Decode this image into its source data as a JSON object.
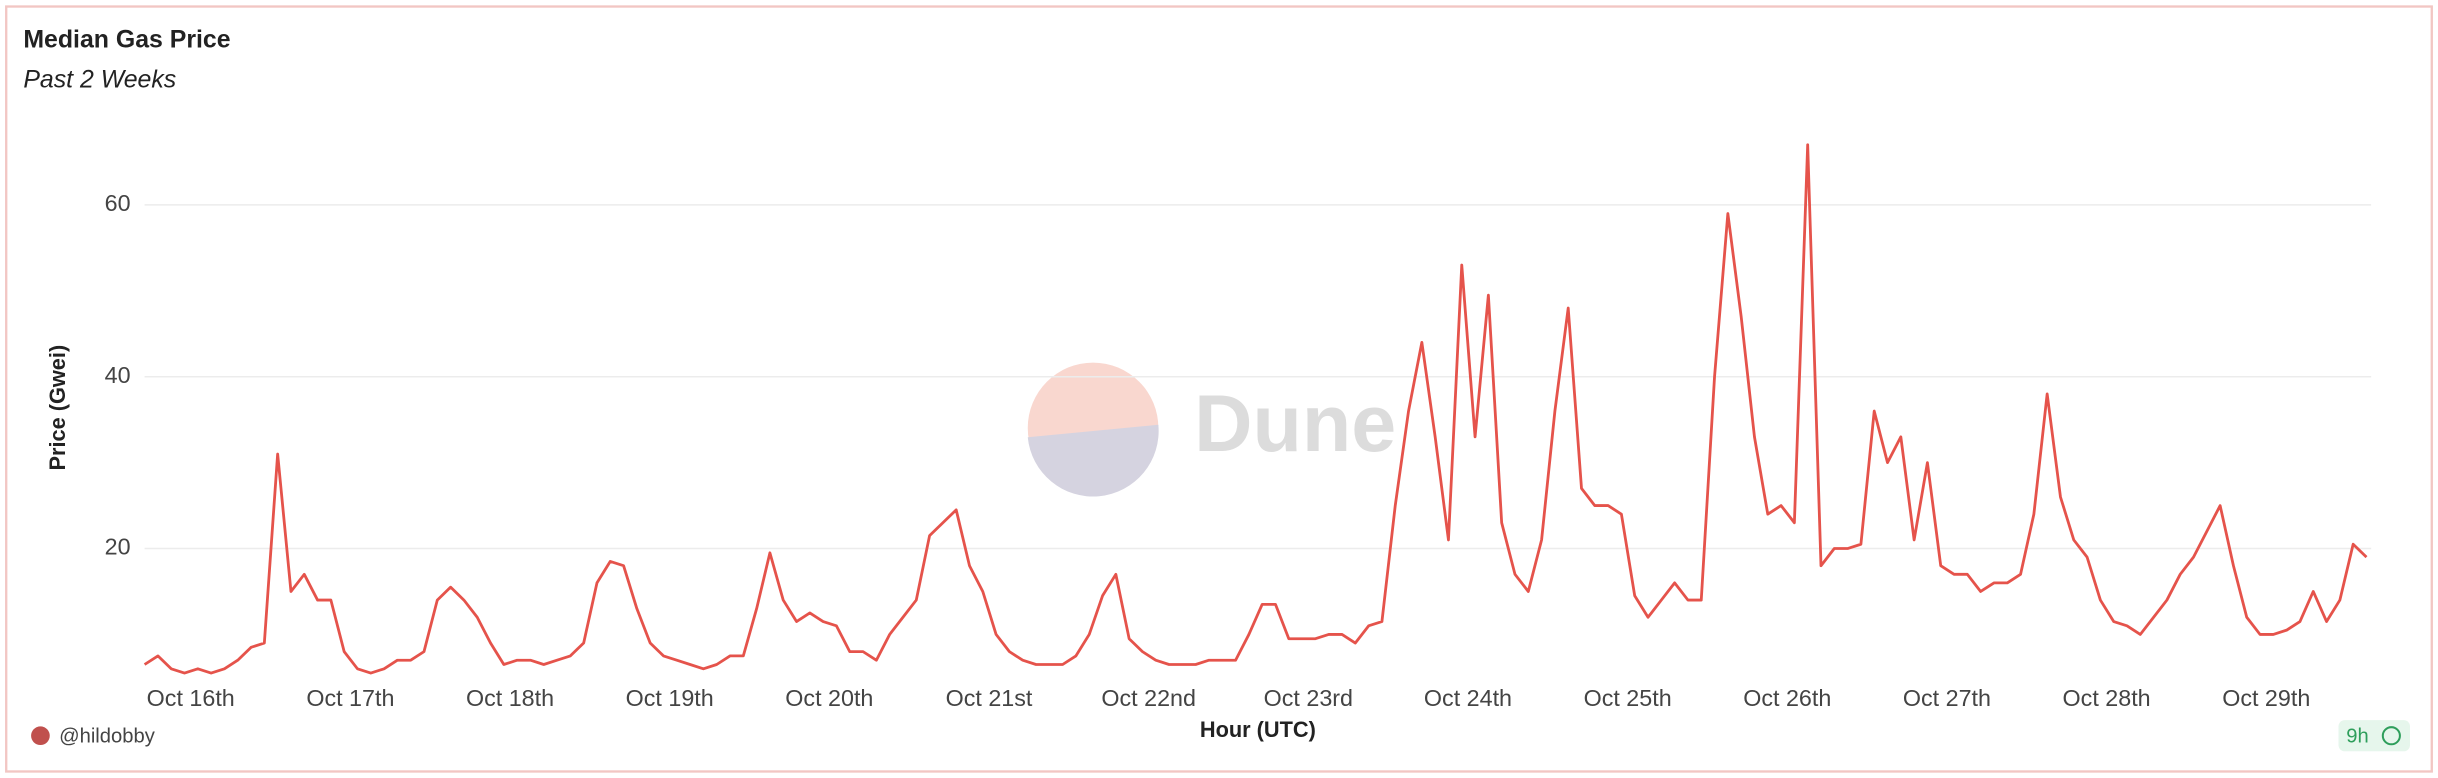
{
  "chart_data": {
    "type": "line",
    "title": "Median Gas Price",
    "subtitle": "Past 2 Weeks",
    "x_label": "Hour (UTC)",
    "y_label": "Price (Gwei)",
    "categories": [
      null,
      null,
      null,
      "Oct 16th",
      null,
      null,
      null,
      null,
      null,
      null,
      null,
      null,
      null,
      null,
      null,
      "Oct 17th",
      null,
      null,
      null,
      null,
      null,
      null,
      null,
      null,
      null,
      null,
      null,
      "Oct 18th",
      null,
      null,
      null,
      null,
      null,
      null,
      null,
      null,
      null,
      null,
      null,
      "Oct 19th",
      null,
      null,
      null,
      null,
      null,
      null,
      null,
      null,
      null,
      null,
      null,
      "Oct 20th",
      null,
      null,
      null,
      null,
      null,
      null,
      null,
      null,
      null,
      null,
      null,
      "Oct 21st",
      null,
      null,
      null,
      null,
      null,
      null,
      null,
      null,
      null,
      null,
      null,
      "Oct 22nd",
      null,
      null,
      null,
      null,
      null,
      null,
      null,
      null,
      null,
      null,
      null,
      "Oct 23rd",
      null,
      null,
      null,
      null,
      null,
      null,
      null,
      null,
      null,
      null,
      null,
      "Oct 24th",
      null,
      null,
      null,
      null,
      null,
      null,
      null,
      null,
      null,
      null,
      null,
      "Oct 25th",
      null,
      null,
      null,
      null,
      null,
      null,
      null,
      null,
      null,
      null,
      null,
      "Oct 26th",
      null,
      null,
      null,
      null,
      null,
      null,
      null,
      null,
      null,
      null,
      null,
      "Oct 27th",
      null,
      null,
      null,
      null,
      null,
      null,
      null,
      null,
      null,
      null,
      null,
      "Oct 28th",
      null,
      null,
      null,
      null,
      null,
      null,
      null,
      null,
      null,
      null,
      null,
      "Oct 29th",
      null,
      null,
      null,
      null,
      null,
      null,
      null,
      null
    ],
    "values": [
      6.5,
      7.5,
      6,
      5.5,
      6,
      5.5,
      6,
      7,
      8.5,
      9,
      31,
      15,
      17,
      14,
      14,
      8,
      6,
      5.5,
      6,
      7,
      7,
      8,
      14,
      15.5,
      14,
      12,
      9,
      6.5,
      7,
      7,
      6.5,
      7,
      7.5,
      9,
      16,
      18.5,
      18,
      13,
      9,
      7.5,
      7,
      6.5,
      6,
      6.5,
      7.5,
      7.5,
      13,
      19.5,
      14,
      11.5,
      12.5,
      11.5,
      11,
      8,
      8,
      7,
      10,
      12,
      14,
      21.5,
      23,
      24.5,
      18,
      15,
      10,
      8,
      7,
      6.5,
      6.5,
      6.5,
      7.5,
      10,
      14.5,
      17,
      9.5,
      8,
      7,
      6.5,
      6.5,
      6.5,
      7,
      7,
      7,
      10,
      13.5,
      13.5,
      9.5,
      9.5,
      9.5,
      10,
      10,
      9,
      11,
      11.5,
      25,
      36,
      44,
      33,
      21,
      53,
      33,
      49.5,
      23,
      17,
      15,
      21,
      36,
      48,
      27,
      25,
      25,
      24,
      14.5,
      12,
      14,
      16,
      14,
      14,
      40,
      59,
      47,
      33,
      24,
      25,
      23,
      67,
      18,
      20,
      20,
      20.5,
      36,
      30,
      33,
      21,
      30,
      18,
      17,
      17,
      15,
      16,
      16,
      17,
      24,
      38,
      26,
      21,
      19,
      14,
      11.5,
      11,
      10,
      12,
      14,
      17,
      19,
      22,
      25,
      18,
      12,
      10,
      10,
      10.5,
      11.5,
      15,
      11.5,
      14,
      20.5,
      19
    ],
    "color": "#e5534b",
    "ylim": [
      4,
      68
    ],
    "yticks": [
      20,
      40,
      60
    ],
    "grid": true
  },
  "watermark": "Dune",
  "author": "@hildobby",
  "refresh": "9h"
}
